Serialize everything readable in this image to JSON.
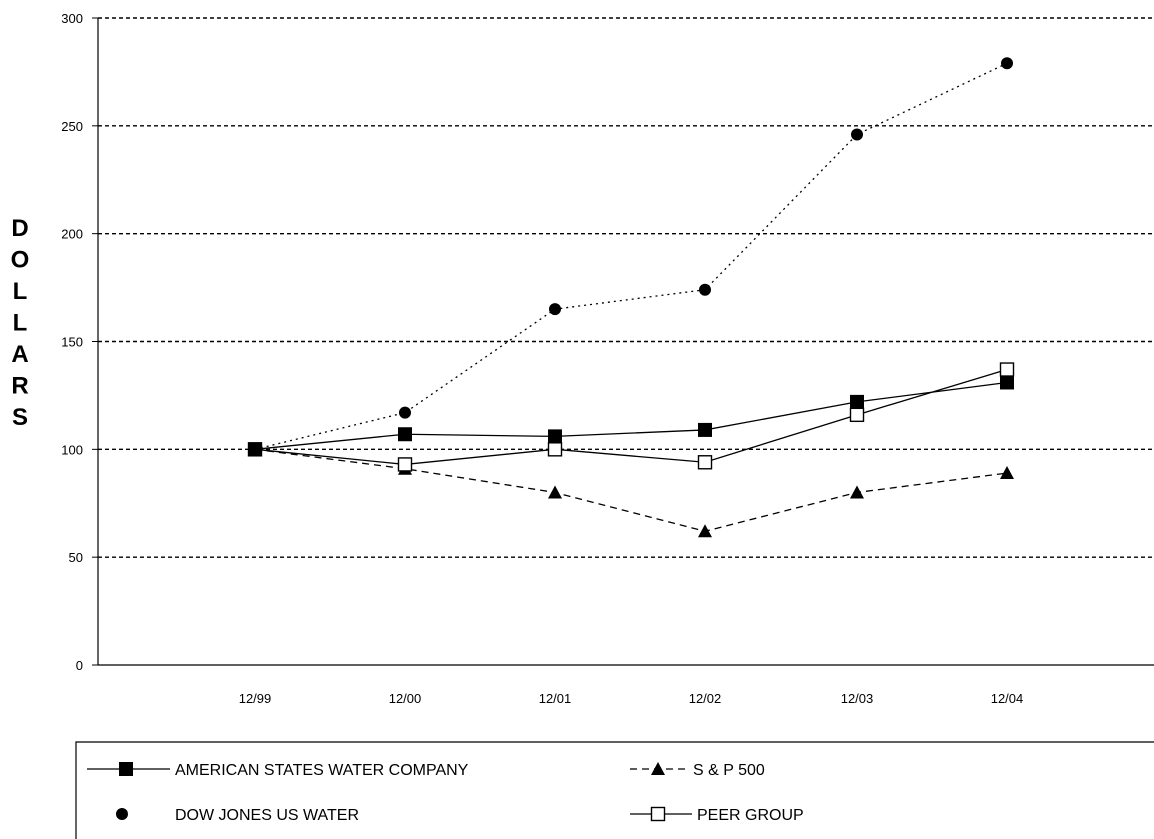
{
  "chart_data": {
    "type": "line",
    "ylabel": "DOLLARS",
    "ylim": [
      0,
      300
    ],
    "yticks": [
      "0",
      "50",
      "100",
      "150",
      "200",
      "250",
      "300"
    ],
    "categories": [
      "12/99",
      "12/00",
      "12/01",
      "12/02",
      "12/03",
      "12/04"
    ],
    "grid": "horizontal dashed",
    "legend_position": "bottom",
    "series": [
      {
        "name": "AMERICAN STATES WATER COMPANY",
        "marker": "filled-square",
        "line": "solid",
        "values": [
          100,
          107,
          106,
          109,
          122,
          131
        ]
      },
      {
        "name": "S & P 500",
        "marker": "filled-triangle",
        "line": "dashed",
        "values": [
          100,
          91,
          80,
          62,
          80,
          89
        ]
      },
      {
        "name": "DOW JONES US WATER",
        "marker": "filled-circle",
        "line": "dotted",
        "values": [
          100,
          117,
          165,
          174,
          246,
          279
        ]
      },
      {
        "name": "PEER GROUP",
        "marker": "open-square",
        "line": "solid",
        "values": [
          100,
          93,
          100,
          94,
          116,
          137
        ]
      }
    ]
  }
}
